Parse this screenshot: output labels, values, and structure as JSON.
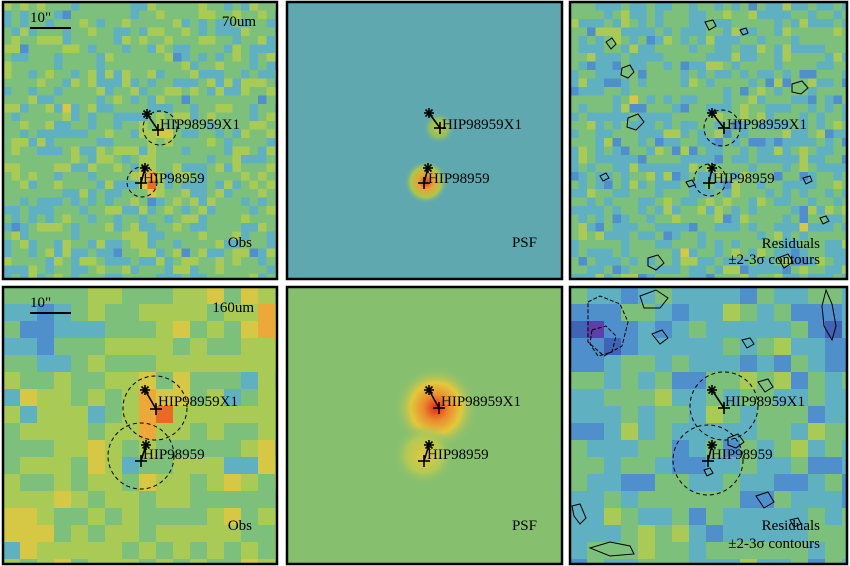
{
  "panels": [
    {
      "id": "obs70",
      "band": "70um",
      "corner_label": "Obs",
      "scalebar": "10\"",
      "source_label": "HIP98959",
      "companion_label": "HIP98959X1"
    },
    {
      "id": "psf70",
      "corner_label": "PSF",
      "source_label": "HIP98959",
      "companion_label": "HIP98959X1"
    },
    {
      "id": "res70",
      "corner_label": "Residuals",
      "contour_label": "±2-3σ contours",
      "source_label": "HIP98959",
      "companion_label": "HIP98959X1"
    },
    {
      "id": "obs160",
      "band": "160um",
      "corner_label": "Obs",
      "scalebar": "10\"",
      "source_label": "HIP98959",
      "companion_label": "HIP98959X1"
    },
    {
      "id": "psf160",
      "corner_label": "PSF",
      "source_label": "HIP98959",
      "companion_label": "HIP98959X1"
    },
    {
      "id": "res160",
      "corner_label": "Residuals",
      "contour_label": "±2-3σ contours",
      "source_label": "HIP98959",
      "companion_label": "HIP98959X1"
    }
  ],
  "colors": {
    "frame": "#000000",
    "psf70_bg": "#5fa8b0",
    "psf160_bg": "#86c06f"
  },
  "icons": [
    "asterisk-marker",
    "plus-marker",
    "dashed-circle-aperture"
  ]
}
